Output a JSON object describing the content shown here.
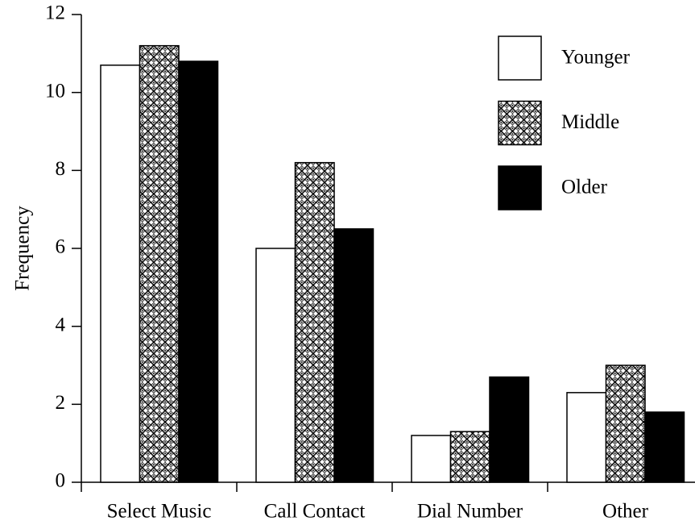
{
  "chart_data": {
    "type": "bar",
    "y_label": "Frequency",
    "categories": [
      "Select Music",
      "Call Contact",
      "Dial Number",
      "Other"
    ],
    "series": [
      {
        "name": "Younger",
        "color": "#ffffff",
        "values": [
          10.7,
          6.0,
          1.2,
          2.3
        ]
      },
      {
        "name": "Middle",
        "color": "#ffffff",
        "pattern": "crosshatch",
        "values": [
          11.2,
          8.2,
          1.3,
          3.0
        ]
      },
      {
        "name": "Older",
        "color": "#000000",
        "values": [
          10.8,
          6.5,
          2.7,
          1.8
        ]
      }
    ],
    "ylim": [
      0,
      12
    ],
    "yticks": [
      0,
      2,
      4,
      6,
      8,
      10,
      12
    ],
    "legend": "upper right"
  }
}
